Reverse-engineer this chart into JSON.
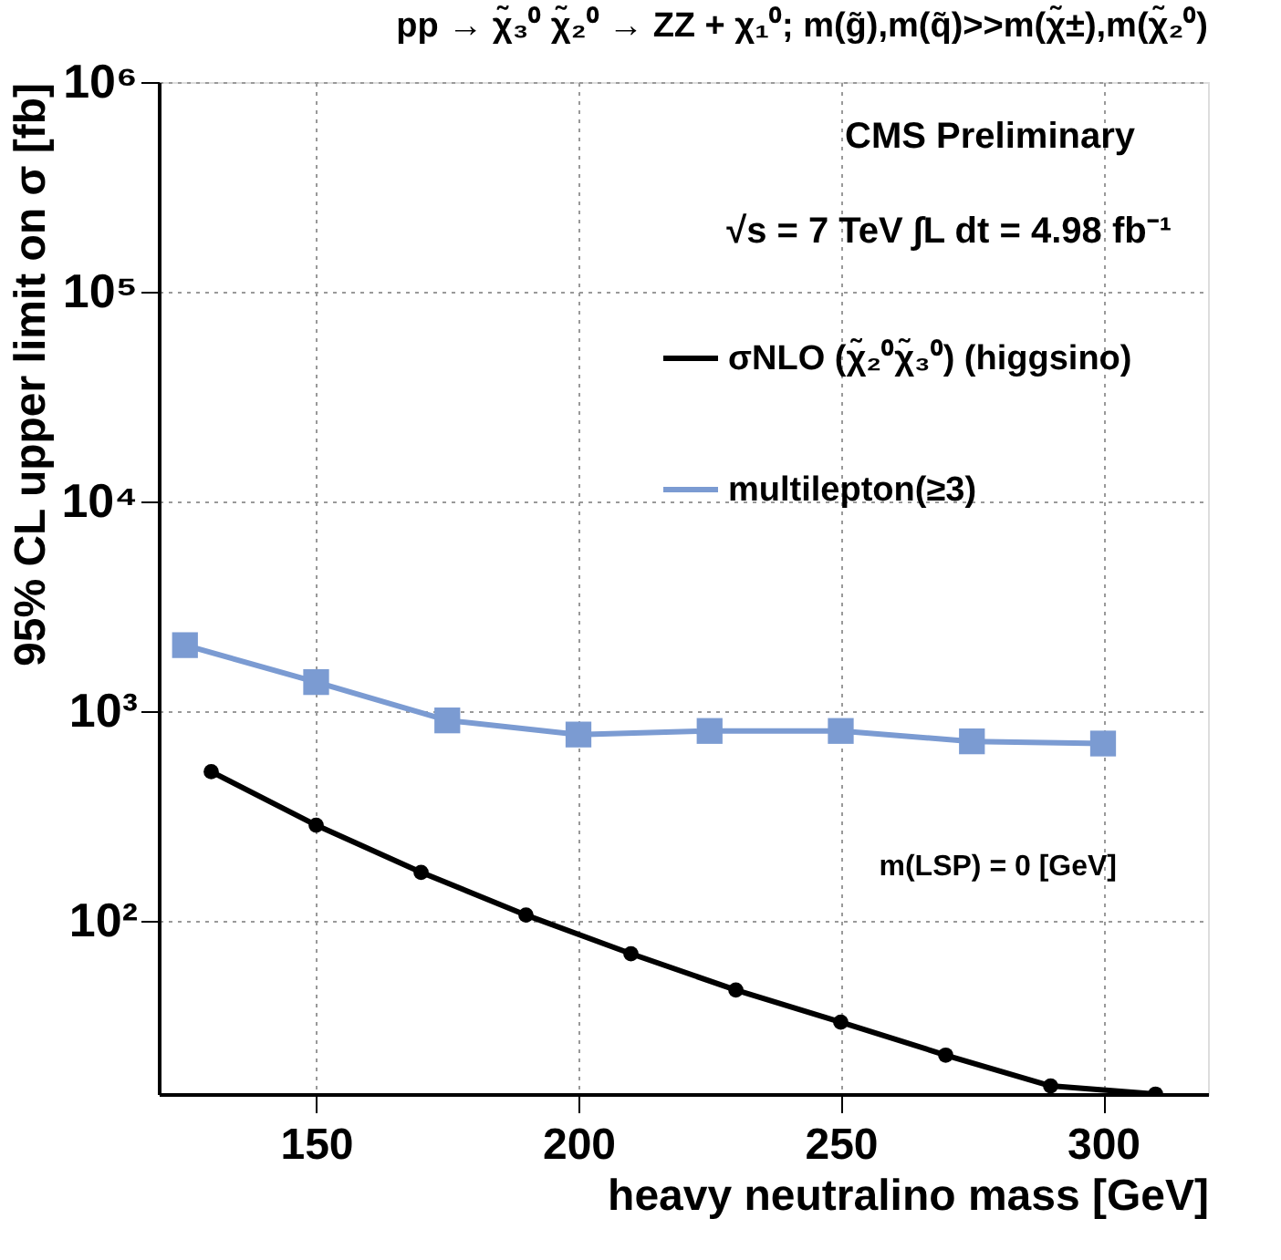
{
  "chart_data": {
    "type": "line",
    "title": "pp → χ̃₃⁰ χ̃₂⁰ → ZZ + χ₁⁰; m(g̃),m(q̃)>>m(χ̃±),m(χ̃₂⁰)",
    "xlabel": "heavy neutralino mass [GeV]",
    "ylabel": "95% CL upper limit on σ [fb]",
    "series": [
      {
        "name": "σNLO (χ̃₂⁰χ̃₃⁰) (higgsino)",
        "color": "#000000",
        "marker": "circle",
        "x": [
          130,
          150,
          170,
          190,
          210,
          230,
          250,
          270,
          290,
          310
        ],
        "values": [
          516,
          287,
          171,
          107,
          70,
          47,
          33,
          23,
          16.4,
          15
        ]
      },
      {
        "name": "multilepton(≥3)",
        "color": "#7b9bd2",
        "marker": "square",
        "x": [
          125,
          150,
          175,
          200,
          225,
          250,
          275,
          300
        ],
        "values": [
          2070,
          1380,
          906,
          776,
          807,
          807,
          720,
          703
        ]
      }
    ],
    "xlim": [
      120,
      320
    ],
    "xticks": [
      150,
      200,
      250,
      300
    ],
    "ylim": [
      15,
      1000000
    ],
    "yticks": [
      {
        "value": 100,
        "label": "10²"
      },
      {
        "value": 1000,
        "label": "10³"
      },
      {
        "value": 10000,
        "label": "10⁴"
      },
      {
        "value": 100000,
        "label": "10⁵"
      },
      {
        "value": 1000000,
        "label": "10⁶"
      }
    ],
    "log": "y",
    "grid": true,
    "legend": "top right",
    "line_style": "solid",
    "annotations": [
      "CMS Preliminary",
      "√s = 7 TeV ∫L dt = 4.98 fb⁻¹",
      "m(LSP) = 0 [GeV]"
    ]
  }
}
